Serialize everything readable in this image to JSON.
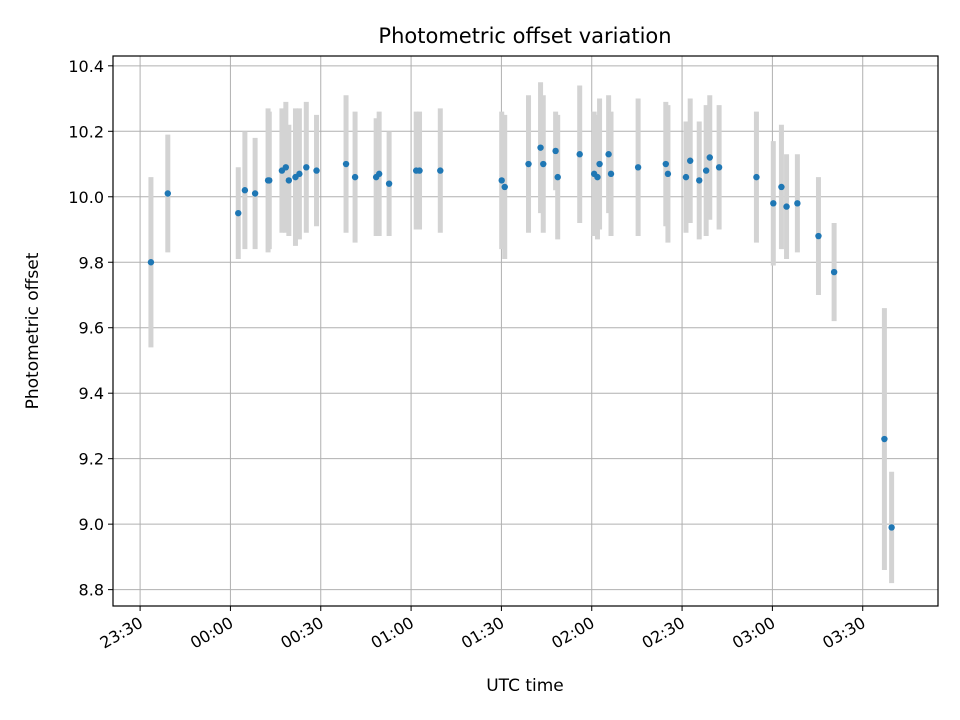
{
  "chart_data": {
    "type": "scatter",
    "title": "Photometric offset variation",
    "xlabel": "UTC time",
    "ylabel": "Photometric offset",
    "xlim": [
      "23:21",
      "03:55"
    ],
    "ylim": [
      8.75,
      10.43
    ],
    "x_ticks": [
      "23:30",
      "00:00",
      "00:30",
      "01:00",
      "01:30",
      "02:00",
      "02:30",
      "03:00",
      "03:30"
    ],
    "y_ticks": [
      "8.8",
      "9.0",
      "9.2",
      "9.4",
      "9.6",
      "9.8",
      "10.0",
      "10.2",
      "10.4"
    ],
    "grid": true,
    "colors": {
      "point": "#1f77b4",
      "errorbar": "#d3d3d3",
      "grid": "#b0b0b0"
    },
    "series": [
      {
        "x": [
          "23:33.6",
          "23:39.2",
          "00:02.6",
          "00:04.8",
          "00:08.2",
          "00:12.5",
          "00:12.9",
          "00:17.1",
          "00:18.4",
          "00:19.4",
          "00:21.6",
          "00:22.9",
          "00:25.2",
          "00:28.6",
          "00:38.4",
          "00:41.4",
          "00:48.4",
          "00:49.4",
          "00:52.7",
          "01:01.7",
          "01:02.8",
          "01:09.7",
          "01:30.1",
          "01:31.1",
          "01:39.0",
          "01:43.0",
          "01:43.9",
          "01:48.0",
          "01:48.7",
          "01:56.0",
          "02:00.8",
          "02:01.9",
          "02:02.6",
          "02:05.6",
          "02:06.4",
          "02:15.4",
          "02:24.6",
          "02:25.3",
          "02:31.3",
          "02:32.7",
          "02:35.7",
          "02:38.0",
          "02:39.2",
          "02:42.3",
          "02:54.7",
          "03:00.3",
          "03:03.0",
          "03:04.7",
          "03:08.3",
          "03:15.3",
          "03:20.5",
          "03:37.2",
          "03:39.6"
        ],
        "y": [
          9.8,
          10.01,
          9.95,
          10.02,
          10.01,
          10.05,
          10.05,
          10.08,
          10.09,
          10.05,
          10.06,
          10.07,
          10.09,
          10.08,
          10.1,
          10.06,
          10.06,
          10.07,
          10.04,
          10.08,
          10.08,
          10.08,
          10.05,
          10.03,
          10.1,
          10.15,
          10.1,
          10.14,
          10.06,
          10.13,
          10.07,
          10.06,
          10.1,
          10.13,
          10.07,
          10.09,
          10.1,
          10.07,
          10.06,
          10.11,
          10.05,
          10.08,
          10.12,
          10.09,
          10.06,
          9.98,
          10.03,
          9.97,
          9.98,
          9.88,
          9.77,
          9.26,
          8.99
        ],
        "yerr": [
          0.26,
          0.18,
          0.14,
          0.18,
          0.17,
          0.22,
          0.21,
          0.19,
          0.2,
          0.17,
          0.21,
          0.2,
          0.2,
          0.17,
          0.21,
          0.2,
          0.18,
          0.19,
          0.16,
          0.18,
          0.18,
          0.19,
          0.21,
          0.22,
          0.21,
          0.2,
          0.21,
          0.12,
          0.19,
          0.21,
          0.19,
          0.19,
          0.2,
          0.18,
          0.19,
          0.21,
          0.19,
          0.21,
          0.17,
          0.19,
          0.18,
          0.2,
          0.19,
          0.19,
          0.2,
          0.19,
          0.19,
          0.16,
          0.15,
          0.18,
          0.15,
          0.4,
          0.17
        ]
      }
    ]
  }
}
